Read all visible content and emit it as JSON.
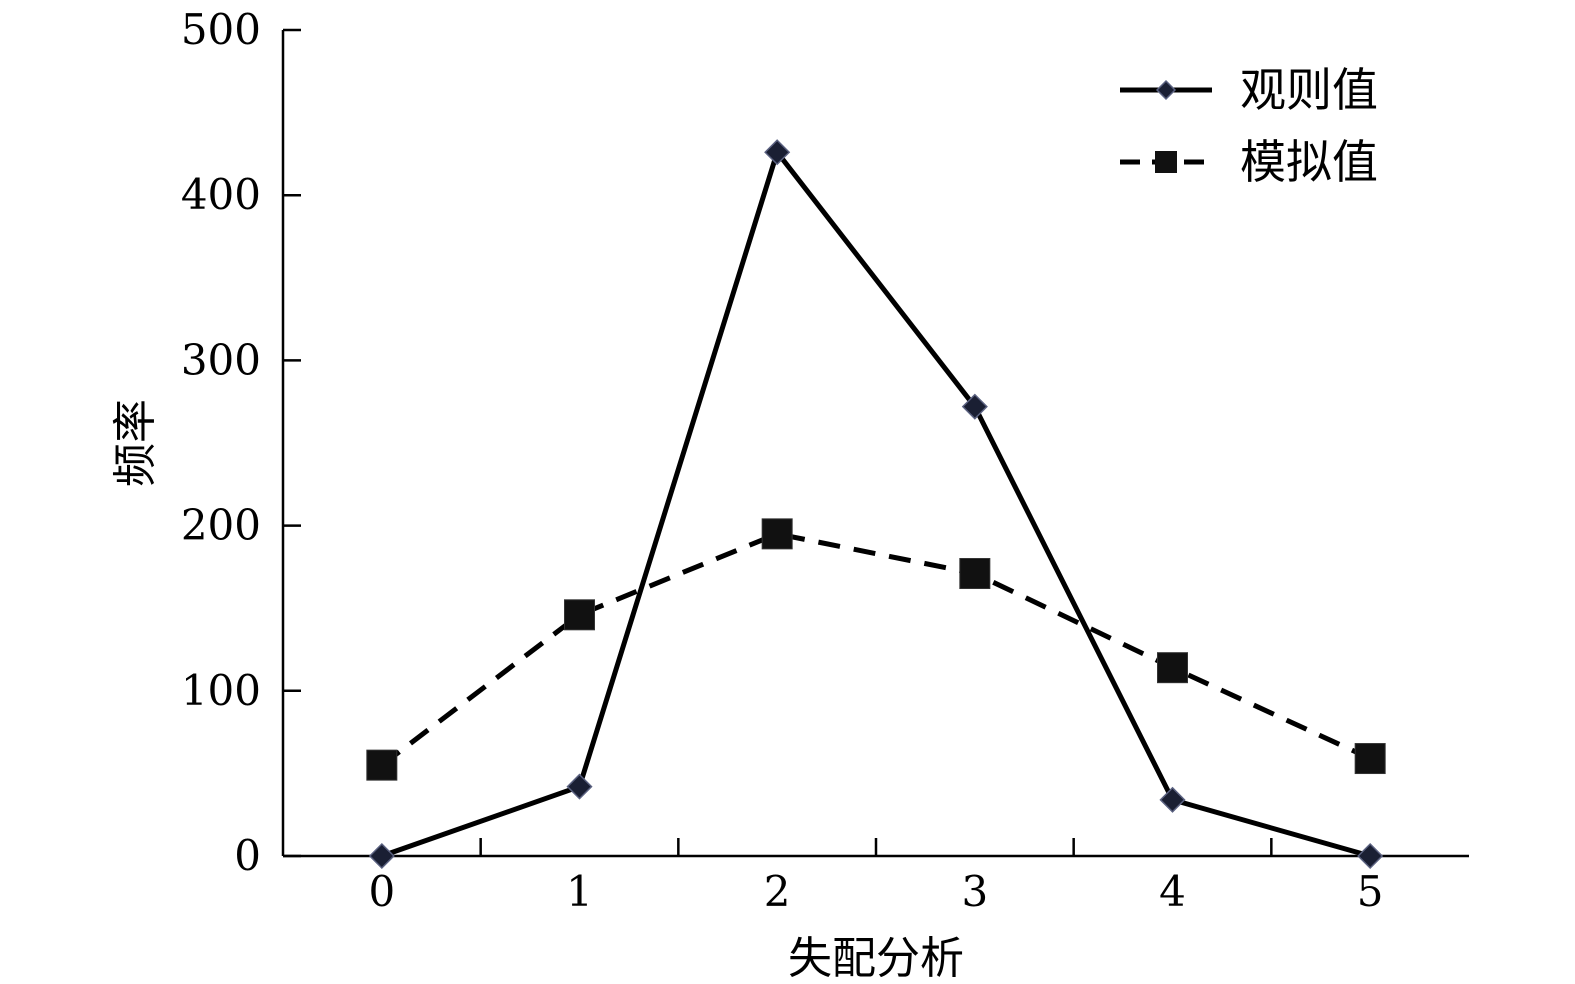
{
  "chart_data": {
    "type": "line",
    "title": "",
    "xlabel": "失配分析",
    "ylabel": "频率",
    "x": [
      0,
      1,
      2,
      3,
      4,
      5
    ],
    "xticks": [
      "0",
      "1",
      "2",
      "3",
      "4",
      "5"
    ],
    "yticks": [
      "0",
      "100",
      "200",
      "300",
      "400",
      "500"
    ],
    "xlim": [
      -0.5,
      5.5
    ],
    "ylim": [
      0,
      500
    ],
    "grid": false,
    "legend_position": "top-right",
    "series": [
      {
        "name": "观则值",
        "values": [
          0,
          42,
          426,
          272,
          34,
          0
        ],
        "line_style": "solid",
        "marker": "diamond",
        "color": "#000000"
      },
      {
        "name": "模拟值",
        "values": [
          55,
          146,
          195,
          171,
          114,
          59
        ],
        "line_style": "dashed",
        "marker": "square",
        "color": "#000000"
      }
    ]
  }
}
